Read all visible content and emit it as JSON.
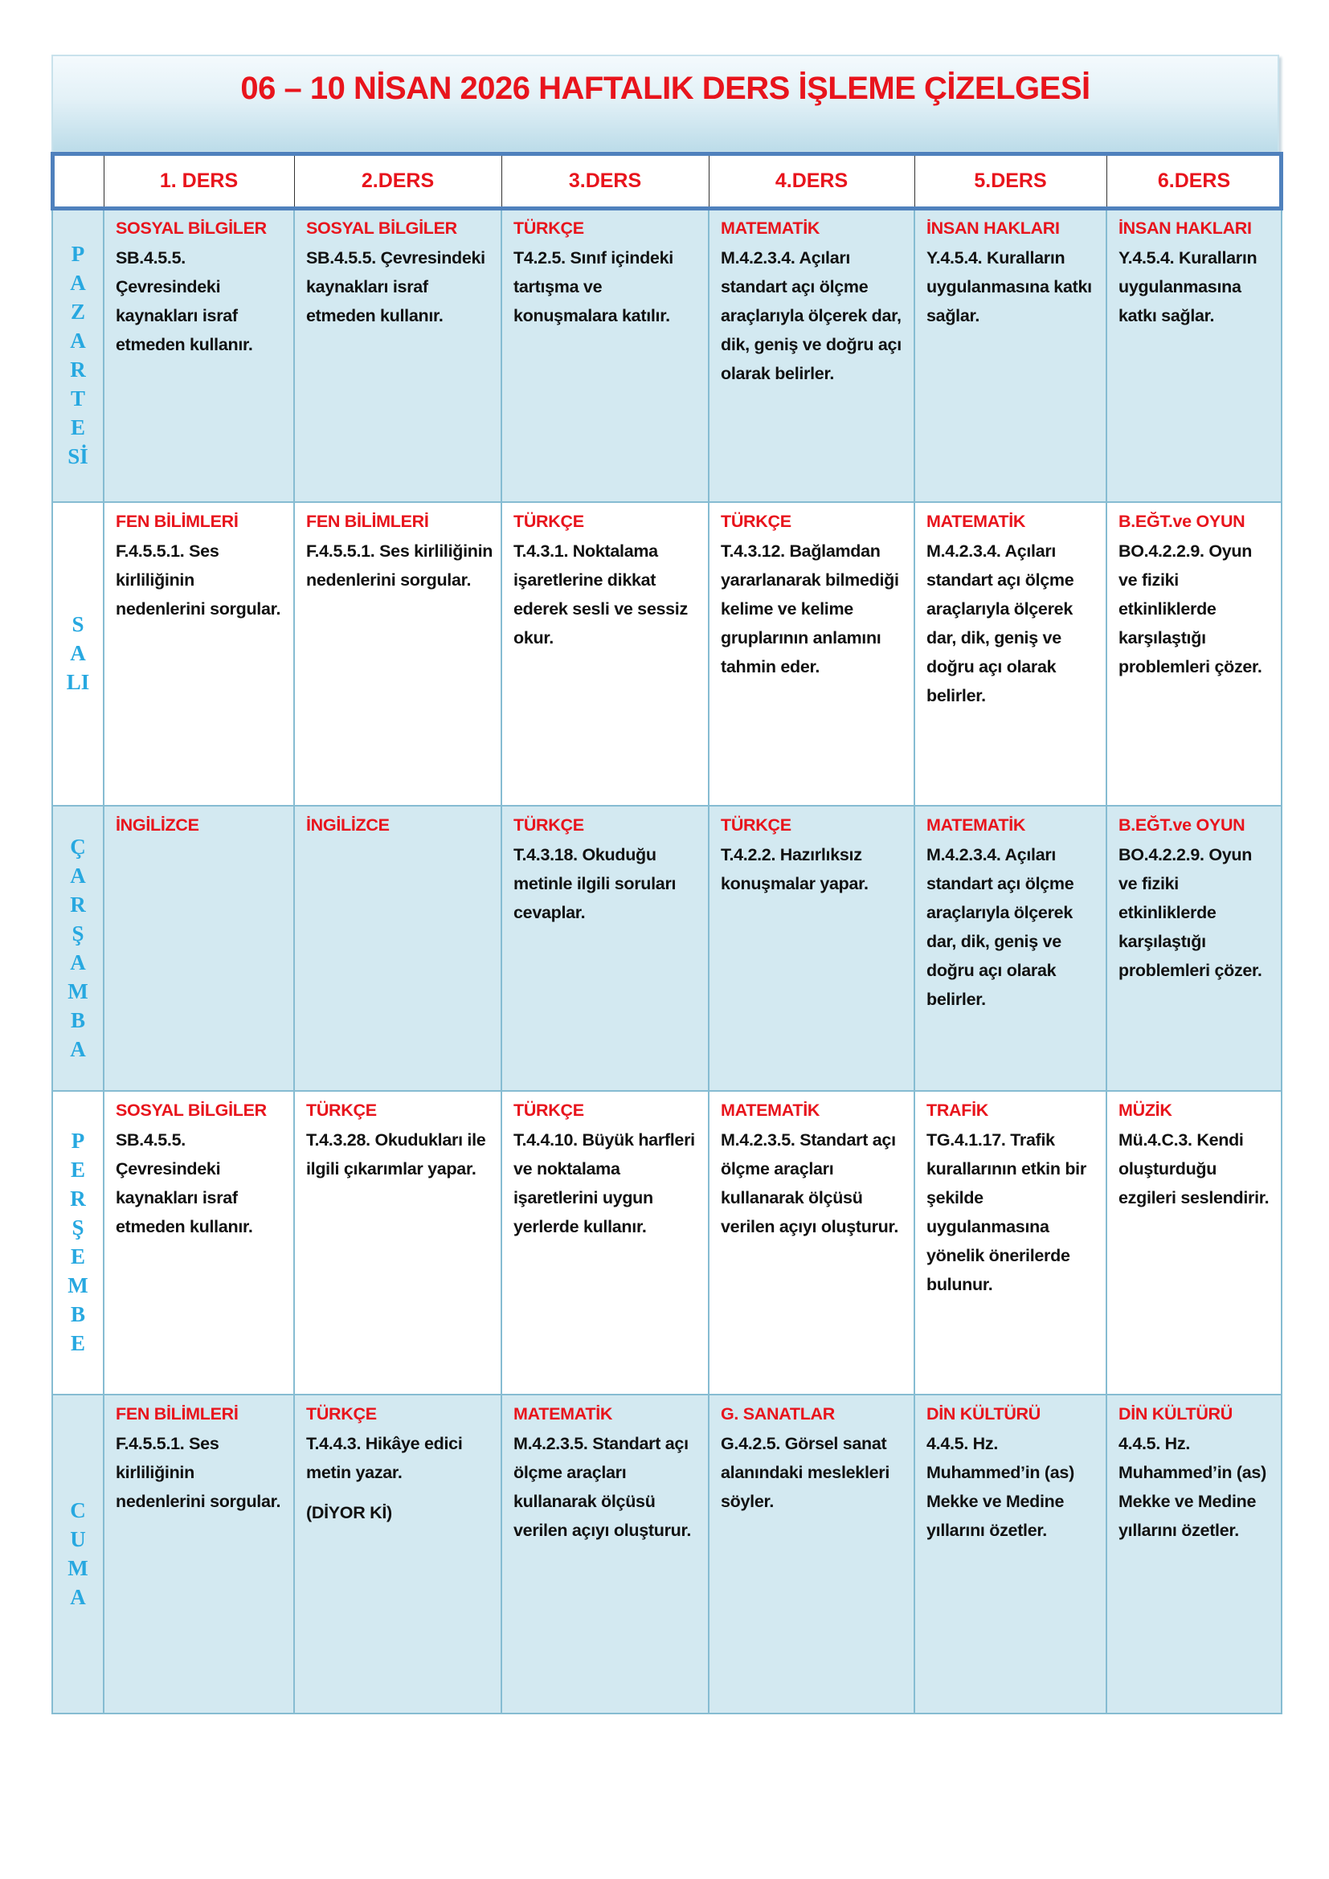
{
  "title": "06 – 10 NİSAN 2026 HAFTALIK DERS İŞLEME ÇİZELGESİ",
  "headers": [
    "",
    "1. DERS",
    "2.DERS",
    "3.DERS",
    "4.DERS",
    "5.DERS",
    "6.DERS"
  ],
  "colors": {
    "title": "#e8141c",
    "day_letters": "#27a8e0",
    "row_blue": "#d3e9f1",
    "header_border": "#4f81bd"
  },
  "days": [
    {
      "name": "PAZARTESİ",
      "letters": [
        "P",
        "A",
        "Z",
        "A",
        "R",
        "T",
        "E",
        "S",
        "İ"
      ],
      "cells": [
        {
          "subject": "SOSYAL BİLGİLER",
          "text": "SB.4.5.5. Çevresindeki kaynakları israf etmeden kullanır."
        },
        {
          "subject": "SOSYAL BİLGİLER",
          "text": "SB.4.5.5. Çevresindeki kaynakları israf etmeden kullanır."
        },
        {
          "subject": "TÜRKÇE",
          "text": "T4.2.5. Sınıf içindeki tartışma ve konuşmalara katılır."
        },
        {
          "subject": "MATEMATİK",
          "text": "M.4.2.3.4. Açıları standart açı ölçme araçlarıyla ölçerek dar, dik, geniş ve doğru açı olarak belirler."
        },
        {
          "subject": "İNSAN HAKLARI",
          "text": "Y.4.5.4. Kuralların uygulanmasına katkı sağlar."
        },
        {
          "subject": "İNSAN HAKLARI",
          "text": "Y.4.5.4. Kuralların uygulanmasına katkı sağlar."
        }
      ]
    },
    {
      "name": "SALI",
      "letters": [
        "S",
        "A",
        "L",
        "I"
      ],
      "cells": [
        {
          "subject": "FEN BİLİMLERİ",
          "text": "F.4.5.5.1. Ses kirliliğinin nedenlerini sorgular."
        },
        {
          "subject": "FEN BİLİMLERİ",
          "text": "F.4.5.5.1. Ses kirliliğinin nedenlerini sorgular."
        },
        {
          "subject": "TÜRKÇE",
          "text": "T.4.3.1. Noktalama işaretlerine dikkat ederek sesli ve sessiz okur."
        },
        {
          "subject": "TÜRKÇE",
          "text": "T.4.3.12. Bağlamdan yararlanarak bilmediği kelime ve kelime gruplarının anlamını tahmin eder."
        },
        {
          "subject": "MATEMATİK",
          "text": "M.4.2.3.4. Açıları standart açı ölçme araçlarıyla ölçerek dar, dik, geniş ve doğru açı olarak belirler."
        },
        {
          "subject": "B.EĞT.ve  OYUN",
          "text": "BO.4.2.2.9. Oyun ve fiziki etkinliklerde karşılaştığı problemleri çözer."
        }
      ]
    },
    {
      "name": "ÇARŞAMBA",
      "letters": [
        "Ç",
        "A",
        "R",
        "Ş",
        "A",
        "M",
        "B",
        "A"
      ],
      "cells": [
        {
          "subject": "İNGİLİZCE",
          "text": ""
        },
        {
          "subject": "İNGİLİZCE",
          "text": ""
        },
        {
          "subject": "TÜRKÇE",
          "text": "T.4.3.18. Okuduğu metinle ilgili soruları cevaplar."
        },
        {
          "subject": "TÜRKÇE",
          "text": "T.4.2.2. Hazırlıksız konuşmalar yapar."
        },
        {
          "subject": "MATEMATİK",
          "text": "M.4.2.3.4. Açıları standart açı ölçme araçlarıyla ölçerek dar, dik, geniş ve doğru açı olarak belirler."
        },
        {
          "subject": "B.EĞT.ve  OYUN",
          "text": "BO.4.2.2.9. Oyun ve fiziki etkinliklerde karşılaştığı problemleri çözer."
        }
      ]
    },
    {
      "name": "PERŞEMBE",
      "letters": [
        "P",
        "E",
        "R",
        "Ş",
        "E",
        "M",
        "B",
        "E"
      ],
      "cells": [
        {
          "subject": "SOSYAL BİLGİLER",
          "text": "SB.4.5.5. Çevresindeki kaynakları israf etmeden kullanır."
        },
        {
          "subject": "TÜRKÇE",
          "text": "T.4.3.28. Okudukları ile ilgili çıkarımlar yapar."
        },
        {
          "subject": "TÜRKÇE",
          "text": "T.4.4.10. Büyük harfleri ve noktalama işaretlerini uygun yerlerde kullanır."
        },
        {
          "subject": "MATEMATİK",
          "text": "M.4.2.3.5. Standart açı ölçme araçları kullanarak ölçüsü verilen açıyı oluşturur."
        },
        {
          "subject": "TRAFİK",
          "text": "TG.4.1.17. Trafik kurallarının etkin bir şekilde uygulanmasına yönelik önerilerde bulunur."
        },
        {
          "subject": "MÜZİK",
          "text": "Mü.4.C.3. Kendi oluşturduğu ezgileri seslendirir."
        }
      ]
    },
    {
      "name": "CUMA",
      "letters": [
        "C",
        "U",
        "M",
        "A"
      ],
      "cells": [
        {
          "subject": "FEN BİLİMLERİ",
          "text": "F.4.5.5.1. Ses kirliliğinin nedenlerini sorgular."
        },
        {
          "subject": "TÜRKÇE",
          "text": "T.4.4.3. Hikâye edici metin yazar.",
          "extra": "(DİYOR Kİ)"
        },
        {
          "subject": "MATEMATİK",
          "text": "M.4.2.3.5. Standart açı ölçme araçları kullanarak ölçüsü verilen açıyı oluşturur."
        },
        {
          "subject": "G. SANATLAR",
          "text": "G.4.2.5. Görsel sanat alanındaki meslekleri söyler."
        },
        {
          "subject": "DİN KÜLTÜRÜ",
          "text": "4.4.5. Hz. Muhammed’in (as) Mekke ve Medine yıllarını özetler."
        },
        {
          "subject": "DİN KÜLTÜRÜ",
          "text": "4.4.5. Hz. Muhammed’in (as) Mekke ve Medine yıllarını özetler."
        }
      ]
    }
  ]
}
